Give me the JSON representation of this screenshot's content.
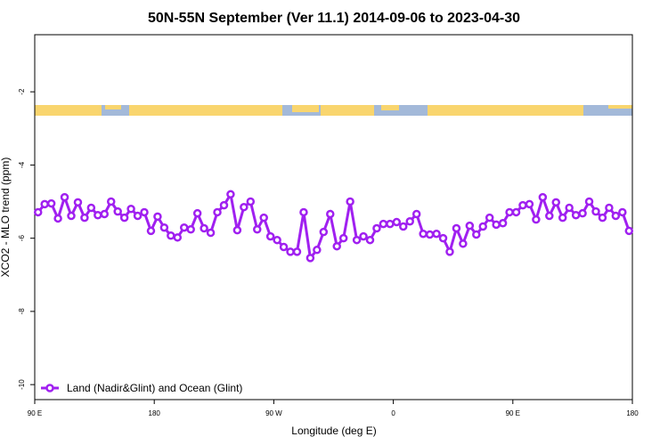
{
  "chart_data": {
    "type": "line",
    "title": "50N-55N September (Ver 11.1)   2014-09-06 to 2023-04-30",
    "x_label": "Longitude (deg E)",
    "y_label": "XCO2 - MLO trend (ppm)",
    "xlim": [
      90,
      540
    ],
    "ylim": [
      -0.44,
      -10.41
    ],
    "xticks": [
      {
        "value": 90,
        "label": "90 E"
      },
      180,
      {
        "value": 270,
        "label": "90 W"
      },
      {
        "value": 360,
        "label": "0"
      },
      {
        "value": 450,
        "label": "90 E"
      },
      {
        "value": 540,
        "label": "180"
      }
    ],
    "yticks": [
      -2,
      -4,
      -6,
      -8,
      -10
    ],
    "legend": "bottom-left",
    "series": [
      {
        "name": "Land (Nadir&Glint) and Ocean (Glint)",
        "color": "#a020f0",
        "x": [
          92.5,
          97.5,
          102.5,
          107.5,
          112.5,
          117.5,
          122.5,
          127.5,
          132.5,
          137.5,
          142.5,
          147.5,
          152.5,
          157.5,
          162.5,
          167.5,
          172.5,
          177.5,
          182.5,
          187.5,
          192.5,
          197.5,
          202.5,
          207.5,
          212.5,
          217.5,
          222.5,
          227.5,
          232.5,
          237.5,
          242.5,
          247.5,
          252.5,
          257.5,
          262.5,
          267.5,
          272.5,
          277.5,
          282.5,
          287.5,
          292.5,
          297.5,
          302.5,
          307.5,
          312.5,
          317.5,
          322.5,
          327.5,
          332.5,
          337.5,
          342.5,
          347.5,
          352.5,
          357.5,
          362.5,
          367.5,
          372.5,
          377.5,
          382.5,
          387.5,
          392.5,
          397.5,
          402.5,
          407.5,
          412.5,
          417.5,
          422.5,
          427.5,
          432.5,
          437.5,
          442.5,
          447.5,
          452.5,
          457.5,
          462.5,
          467.5,
          472.5,
          477.5,
          482.5,
          487.5,
          492.5,
          497.5,
          502.5,
          507.5,
          512.5,
          517.5,
          522.5,
          527.5,
          532.5,
          537.5
        ],
        "values": [
          -5.29,
          -5.07,
          -5.05,
          -5.46,
          -4.88,
          -5.39,
          -5.02,
          -5.44,
          -5.17,
          -5.37,
          -5.34,
          -5.0,
          -5.27,
          -5.44,
          -5.2,
          -5.39,
          -5.29,
          -5.8,
          -5.41,
          -5.71,
          -5.93,
          -5.98,
          -5.71,
          -5.76,
          -5.32,
          -5.73,
          -5.85,
          -5.29,
          -5.1,
          -4.8,
          -5.78,
          -5.15,
          -5.0,
          -5.76,
          -5.44,
          -5.95,
          -6.05,
          -6.24,
          -6.37,
          -6.37,
          -5.29,
          -6.54,
          -6.32,
          -5.83,
          -5.34,
          -6.22,
          -6.0,
          -5.0,
          -6.05,
          -5.95,
          -6.05,
          -5.73,
          -5.61,
          -5.61,
          -5.56,
          -5.68,
          -5.54,
          -5.34,
          -5.88,
          -5.9,
          -5.88,
          -6.0,
          -6.37,
          -5.73,
          -6.15,
          -5.66,
          -5.9,
          -5.68,
          -5.44,
          -5.63,
          -5.59,
          -5.29,
          -5.29,
          -5.1,
          -5.07,
          -5.49,
          -4.88,
          -5.39,
          -5.02,
          -5.44,
          -5.17,
          -5.37,
          -5.32,
          -5.0,
          -5.27,
          -5.44,
          -5.17,
          -5.39,
          -5.29,
          -5.8
        ]
      }
    ]
  }
}
